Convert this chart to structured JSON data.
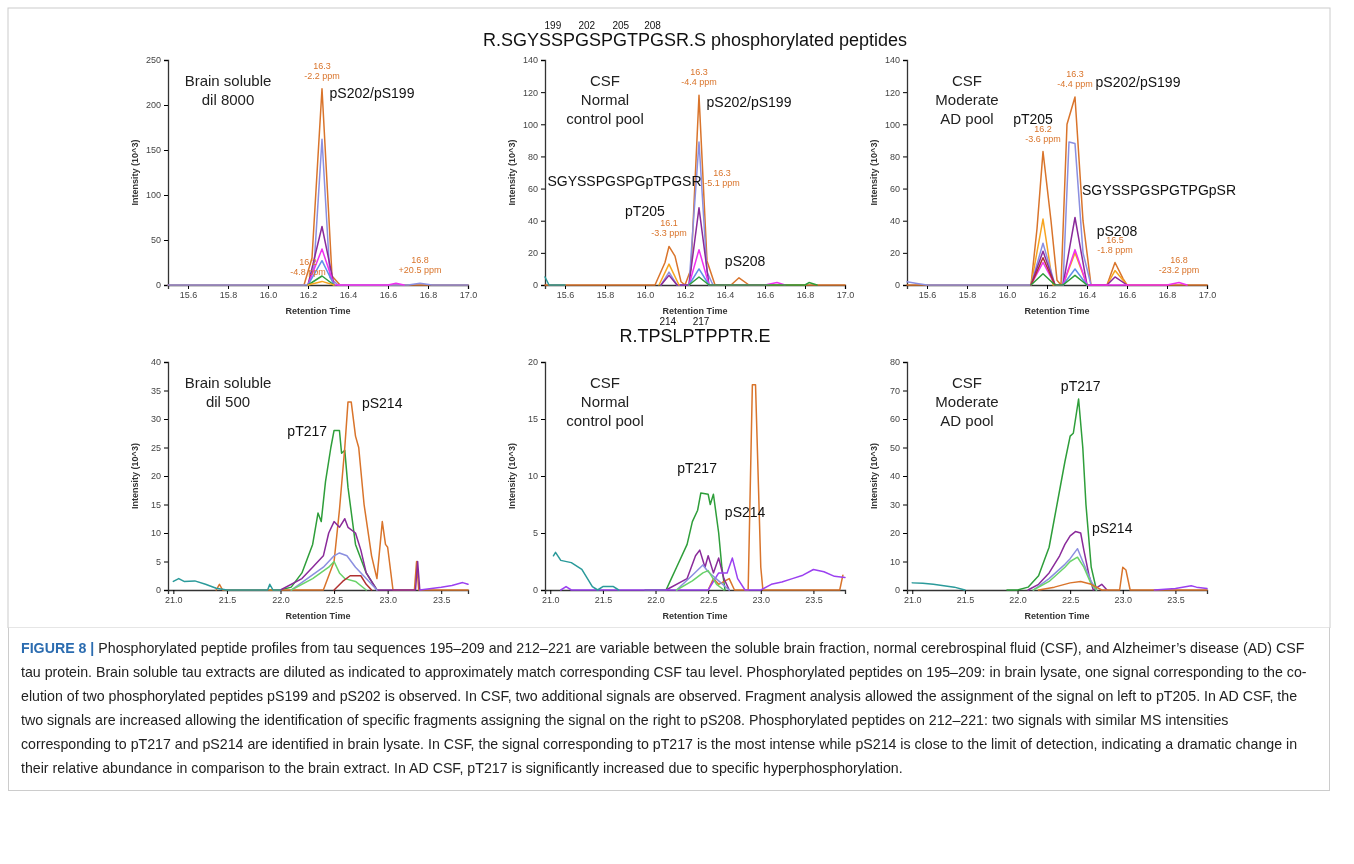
{
  "chart_data": [
    {
      "type": "line",
      "subtitle": "Brain soluble\ndil 8000",
      "xlabel": "Retention Time",
      "ylabel": "Intensity (10^3)",
      "xlim": [
        15.5,
        17.0
      ],
      "ylim": [
        0,
        250
      ],
      "xticks": [
        15.6,
        15.8,
        {
          "value": 16,
          "label": "16.0"
        },
        16.2,
        16.4,
        16.6,
        16.8,
        {
          "value": 17,
          "label": "17.0"
        }
      ],
      "yticks": [
        0,
        50,
        100,
        150,
        200,
        250
      ],
      "line_style": "solid",
      "series": [
        {
          "color": "#d9742b",
          "x": [
            15.5,
            16.18,
            16.22,
            16.27,
            16.32,
            16.36,
            17.0
          ],
          "values": [
            0,
            0,
            30,
            218,
            10,
            0,
            0
          ]
        },
        {
          "color": "#8b8fe0",
          "x": [
            15.5,
            16.2,
            16.23,
            16.27,
            16.31,
            16.35,
            16.7,
            16.76,
            16.82,
            17.0
          ],
          "values": [
            0,
            0,
            20,
            162,
            8,
            0,
            0,
            2,
            0,
            0
          ]
        },
        {
          "color": "#8a2a9a",
          "x": [
            16.2,
            16.27,
            16.33
          ],
          "values": [
            0,
            65,
            0
          ]
        },
        {
          "color": "#f030f0",
          "x": [
            16.2,
            16.27,
            16.33,
            16.6,
            16.64,
            16.68
          ],
          "values": [
            0,
            40,
            0,
            0,
            2,
            0
          ]
        },
        {
          "color": "#5f8fe8",
          "x": [
            16.2,
            16.27,
            16.33
          ],
          "values": [
            0,
            27,
            0
          ]
        },
        {
          "color": "#2e9e3a",
          "x": [
            16.2,
            16.27,
            16.33
          ],
          "values": [
            0,
            10,
            0
          ]
        },
        {
          "color": "#f7a520",
          "x": [
            16.2,
            16.27,
            16.33
          ],
          "values": [
            0,
            4,
            0
          ]
        }
      ],
      "annotations": [
        {
          "text": "16.3\n-2.2 ppm",
          "x": 16.27,
          "y": 218
        },
        {
          "text": "16.2\n-4.8 ppm",
          "x": 16.2,
          "y": 0
        },
        {
          "text": "16.8\n+20.5 ppm",
          "x": 16.76,
          "y": 2
        },
        "pS202/pS199"
      ]
    },
    {
      "type": "line",
      "title": "R.SGYSSPGSPGTPGSR.S phosphorylated peptides",
      "subtitle": "CSF\nNormal\ncontrol pool",
      "xlabel": "Retention Time",
      "ylabel": "Intensity (10^3)",
      "xlim": [
        15.5,
        17.0
      ],
      "ylim": [
        0,
        140
      ],
      "xticks": [
        15.6,
        15.8,
        {
          "value": 16,
          "label": "16.0"
        },
        16.2,
        16.4,
        16.6,
        16.8,
        {
          "value": 17,
          "label": "17.0"
        }
      ],
      "yticks": [
        0,
        20,
        40,
        60,
        80,
        100,
        120,
        140
      ],
      "line_style": "solid",
      "series": [
        {
          "color": "#d9742b",
          "x": [
            15.5,
            16.05,
            16.1,
            16.12,
            16.15,
            16.18,
            16.2,
            16.23,
            16.27,
            16.31,
            16.35,
            16.43,
            16.47,
            16.52,
            17.0
          ],
          "values": [
            0,
            0,
            14,
            24,
            18,
            2,
            0,
            10,
            118,
            15,
            0,
            0,
            4.5,
            0,
            0
          ]
        },
        {
          "color": "#8b8fe0",
          "x": [
            16.08,
            16.12,
            16.16,
            16.22,
            16.27,
            16.31,
            16.34
          ],
          "values": [
            0,
            8,
            0,
            0,
            89,
            8,
            0
          ]
        },
        {
          "color": "#8a2a9a",
          "x": [
            16.08,
            16.12,
            16.16,
            16.22,
            16.27,
            16.32
          ],
          "values": [
            0,
            6,
            0,
            0,
            48,
            0
          ]
        },
        {
          "color": "#f7a520",
          "x": [
            16.07,
            16.12,
            16.17
          ],
          "values": [
            0,
            13,
            0
          ]
        },
        {
          "color": "#f030f0",
          "x": [
            16.22,
            16.27,
            16.32,
            16.6,
            16.66,
            16.7
          ],
          "values": [
            0,
            22,
            0,
            0,
            1.5,
            0
          ]
        },
        {
          "color": "#5f8fe8",
          "x": [
            16.22,
            16.27,
            16.32
          ],
          "values": [
            0,
            10,
            0
          ]
        },
        {
          "color": "#2e9e3a",
          "x": [
            16.22,
            16.27,
            16.32,
            16.8,
            16.82,
            16.86
          ],
          "values": [
            0,
            5,
            0,
            0,
            1.5,
            0
          ]
        },
        {
          "color": "#2a9a9a",
          "x": [
            15.5,
            15.52,
            15.6
          ],
          "values": [
            5,
            0,
            0
          ]
        }
      ],
      "annotations": [
        "199",
        "202",
        "205",
        "208",
        {
          "text": "16.3\n-4.4 ppm",
          "x": 16.27,
          "y": 118
        },
        {
          "text": "16.1\n-3.3 ppm",
          "x": 16.12,
          "y": 24
        },
        "pS202/pS199",
        "16.3\n-5.1 ppm",
        "SGYSSPGSPGpTPGSR",
        "pT205",
        "pS208"
      ]
    },
    {
      "type": "line",
      "subtitle": "CSF\nModerate\nAD pool",
      "xlabel": "Retention Time",
      "ylabel": "Intensity (10^3)",
      "xlim": [
        15.5,
        17.0
      ],
      "ylim": [
        0,
        140
      ],
      "xticks": [
        15.6,
        15.8,
        {
          "value": 16,
          "label": "16.0"
        },
        16.2,
        16.4,
        16.6,
        16.8,
        {
          "value": 17,
          "label": "17.0"
        }
      ],
      "yticks": [
        0,
        20,
        40,
        60,
        80,
        100,
        120,
        140
      ],
      "line_style": "solid",
      "series": [
        {
          "color": "#d9742b",
          "x": [
            15.5,
            16.12,
            16.15,
            16.18,
            16.22,
            16.25,
            16.27,
            16.3,
            16.34,
            16.38,
            16.42,
            16.5,
            16.54,
            16.58,
            16.6,
            17.0
          ],
          "values": [
            0,
            0,
            35,
            83,
            40,
            3,
            0,
            100,
            117,
            40,
            0,
            0,
            14,
            4,
            0,
            0
          ]
        },
        {
          "color": "#f7a520",
          "x": [
            16.12,
            16.18,
            16.23,
            16.28,
            16.34,
            16.4,
            16.5,
            16.54,
            16.6
          ],
          "values": [
            0,
            41,
            0,
            0,
            20,
            0,
            0,
            9,
            0
          ]
        },
        {
          "color": "#8b8fe0",
          "x": [
            15.5,
            15.55,
            15.6,
            16.12,
            16.18,
            16.24,
            16.28,
            16.31,
            16.34,
            16.38,
            16.42
          ],
          "values": [
            2,
            1,
            0,
            0,
            26,
            0,
            0,
            89,
            88,
            20,
            0
          ]
        },
        {
          "color": "#8a2a9a",
          "x": [
            16.12,
            16.18,
            16.24,
            16.28,
            16.34,
            16.4,
            16.5,
            16.54,
            16.6
          ],
          "values": [
            0,
            21,
            0,
            0,
            42,
            0,
            0,
            5,
            0
          ]
        },
        {
          "color": "#f030f0",
          "x": [
            16.12,
            16.18,
            16.24,
            16.28,
            16.34,
            16.4,
            16.8,
            16.86,
            16.9
          ],
          "values": [
            0,
            14,
            0,
            0,
            22,
            0,
            0,
            1.5,
            0
          ]
        },
        {
          "color": "#b03030",
          "x": [
            16.12,
            16.18,
            16.24
          ],
          "values": [
            0,
            17,
            0
          ]
        },
        {
          "color": "#5f8fe8",
          "x": [
            16.28,
            16.34,
            16.4
          ],
          "values": [
            0,
            10,
            0
          ]
        },
        {
          "color": "#2e9e3a",
          "x": [
            16.12,
            16.18,
            16.24,
            16.28,
            16.34,
            16.4
          ],
          "values": [
            0,
            7,
            0,
            0,
            6,
            0
          ]
        }
      ],
      "annotations": [
        {
          "text": "16.2\n-3.6 ppm",
          "x": 16.18,
          "y": 83
        },
        {
          "text": "16.3\n-4.4 ppm",
          "x": 16.34,
          "y": 117
        },
        {
          "text": "16.5\n-1.8 ppm",
          "x": 16.54,
          "y": 14
        },
        {
          "text": "16.8\n-23.2 ppm",
          "x": 16.86,
          "y": 1.5
        },
        "pS202/pS199",
        "pT205",
        "SGYSSPGSPGTPGpSR",
        "pS208"
      ]
    },
    {
      "type": "line",
      "subtitle": "Brain soluble\ndil 500",
      "xlabel": "Retention Time",
      "ylabel": "Intensity (10^3)",
      "xlim": [
        20.95,
        23.75
      ],
      "ylim": [
        0,
        40
      ],
      "xticks": [
        {
          "value": 21,
          "label": "21.0"
        },
        21.5,
        {
          "value": 22,
          "label": "22.0"
        },
        22.5,
        {
          "value": 23,
          "label": "23.0"
        },
        23.5
      ],
      "yticks": [
        0,
        5,
        10,
        15,
        20,
        25,
        30,
        35,
        40
      ],
      "line_style": "solid",
      "series": [
        {
          "color": "#2e9e3a",
          "x": [
            21.9,
            22.0,
            22.1,
            22.2,
            22.3,
            22.35,
            22.38,
            22.42,
            22.47,
            22.5,
            22.55,
            22.57,
            22.6,
            22.63,
            22.7,
            22.8,
            22.9
          ],
          "values": [
            0,
            0,
            0.5,
            3,
            8,
            13.5,
            12,
            19,
            25,
            28,
            28,
            24,
            24.5,
            18,
            8,
            3,
            0
          ]
        },
        {
          "color": "#d9742b",
          "x": [
            21.4,
            21.43,
            21.46,
            22.3,
            22.4,
            22.5,
            22.55,
            22.6,
            22.63,
            22.66,
            22.7,
            22.73,
            22.78,
            22.85,
            22.9,
            22.95,
            22.98,
            23.0,
            23.05,
            23.25,
            23.27,
            23.29,
            23.75
          ],
          "values": [
            0,
            1,
            0,
            0,
            0,
            5,
            14,
            25,
            33,
            33,
            27,
            25,
            15,
            6,
            2,
            12,
            8,
            7.5,
            0,
            0,
            5,
            0,
            0
          ]
        },
        {
          "color": "#8a2a9a",
          "x": [
            22.0,
            22.2,
            22.3,
            22.4,
            22.45,
            22.5,
            22.55,
            22.6,
            22.63,
            22.7,
            22.75,
            22.8,
            22.9,
            23.26,
            23.28,
            23.3
          ],
          "values": [
            0,
            2,
            4,
            6,
            10,
            12,
            11,
            12.5,
            11,
            10,
            7,
            3,
            0,
            0,
            5,
            0
          ]
        },
        {
          "color": "#8b8fe0",
          "x": [
            22.1,
            22.25,
            22.4,
            22.5,
            22.55,
            22.62,
            22.7,
            22.8,
            22.9
          ],
          "values": [
            0,
            2,
            4,
            6,
            6.5,
            6,
            4,
            2,
            0
          ]
        },
        {
          "color": "#6ad36a",
          "x": [
            22.1,
            22.3,
            22.45,
            22.5,
            22.55,
            22.6,
            22.7,
            22.8
          ],
          "values": [
            0,
            2,
            4,
            5,
            3,
            2,
            1.5,
            0
          ]
        },
        {
          "color": "#2a9a9a",
          "x": [
            21.0,
            21.05,
            21.1,
            21.2,
            21.3,
            21.4,
            21.5,
            21.88,
            21.9,
            21.93,
            22.0
          ],
          "values": [
            1.5,
            2,
            1.5,
            1.6,
            1,
            0.3,
            0,
            0,
            1,
            0,
            0
          ]
        },
        {
          "color": "#9b40f0",
          "x": [
            23.3,
            23.5,
            23.6,
            23.7,
            23.75
          ],
          "values": [
            0,
            0.5,
            0.8,
            1.3,
            1
          ]
        },
        {
          "color": "#b03030",
          "x": [
            22.5,
            22.58,
            22.65,
            22.75,
            22.8,
            22.85
          ],
          "values": [
            0,
            1.5,
            2.5,
            2.5,
            1,
            0
          ]
        }
      ],
      "annotations": [
        "pS214",
        "pT217"
      ]
    },
    {
      "type": "line",
      "title": "R.TPSLPTPPTR.E",
      "subtitle": "CSF\nNormal\ncontrol pool",
      "xlabel": "Retention Time",
      "ylabel": "Intensity (10^3)",
      "xlim": [
        20.95,
        23.8
      ],
      "ylim": [
        0,
        20
      ],
      "xticks": [
        {
          "value": 21,
          "label": "21.0"
        },
        21.5,
        {
          "value": 22,
          "label": "22.0"
        },
        22.5,
        {
          "value": 23,
          "label": "23.0"
        },
        23.5
      ],
      "yticks": [
        0,
        5,
        10,
        15,
        20
      ],
      "line_style": "solid",
      "series": [
        {
          "color": "#2e9e3a",
          "x": [
            21.9,
            22.1,
            22.15,
            22.2,
            22.3,
            22.35,
            22.4,
            22.43,
            22.5,
            22.52,
            22.55,
            22.6,
            22.63,
            22.66
          ],
          "values": [
            0,
            0,
            1,
            2,
            4,
            6,
            7,
            8.5,
            8.4,
            7.5,
            8.4,
            5,
            2,
            0
          ]
        },
        {
          "color": "#d9742b",
          "x": [
            22.5,
            22.55,
            22.6,
            22.7,
            22.75,
            22.88,
            22.92,
            22.95,
            23.0,
            23.02,
            23.75,
            23.78
          ],
          "values": [
            0,
            1,
            0.5,
            1,
            0,
            0,
            18,
            18,
            2,
            0,
            0,
            1.3
          ]
        },
        {
          "color": "#8a2a9a",
          "x": [
            22.1,
            22.3,
            22.38,
            22.42,
            22.47,
            22.5,
            22.55,
            22.6,
            22.65,
            22.7
          ],
          "values": [
            0,
            1,
            3,
            3.5,
            2,
            3,
            1.5,
            2.8,
            1,
            0
          ]
        },
        {
          "color": "#9b40f0",
          "x": [
            21.1,
            21.15,
            21.2,
            22.5,
            22.6,
            22.68,
            22.73,
            22.78,
            22.85,
            23.0,
            23.1,
            23.2,
            23.3,
            23.4,
            23.5,
            23.6,
            23.7,
            23.8
          ],
          "values": [
            0,
            0.3,
            0,
            0,
            1.5,
            1.5,
            2.8,
            1,
            0,
            0,
            0.5,
            0.7,
            1,
            1.3,
            1.8,
            1.6,
            1.2,
            1.1
          ]
        },
        {
          "color": "#8b8fe0",
          "x": [
            22.2,
            22.35,
            22.45,
            22.5,
            22.6,
            22.7
          ],
          "values": [
            0,
            1.3,
            2.2,
            1.6,
            0.8,
            0
          ]
        },
        {
          "color": "#2a9a9a",
          "x": [
            21.03,
            21.05,
            21.1,
            21.2,
            21.3,
            21.4,
            21.45,
            21.5,
            21.6,
            21.65
          ],
          "values": [
            3,
            3.3,
            2.6,
            2.4,
            1.8,
            0.3,
            0,
            0.3,
            0.3,
            0
          ]
        },
        {
          "color": "#6ad36a",
          "x": [
            22.2,
            22.35,
            22.45,
            22.5,
            22.58,
            22.65
          ],
          "values": [
            0,
            0.8,
            1.5,
            1.7,
            0.5,
            0
          ]
        }
      ],
      "annotations": [
        "214",
        "217",
        "pT217",
        "pS214"
      ]
    },
    {
      "type": "line",
      "subtitle": "CSF\nModerate\nAD pool",
      "xlabel": "Retention Time",
      "ylabel": "Intensity (10^3)",
      "xlim": [
        20.95,
        23.8
      ],
      "ylim": [
        0,
        80
      ],
      "xticks": [
        {
          "value": 21,
          "label": "21.0"
        },
        21.5,
        {
          "value": 22,
          "label": "22.0"
        },
        22.5,
        {
          "value": 23,
          "label": "23.0"
        },
        23.5
      ],
      "yticks": [
        0,
        10,
        20,
        30,
        40,
        50,
        60,
        70,
        80
      ],
      "line_style": "solid",
      "series": [
        {
          "color": "#2e9e3a",
          "x": [
            21.9,
            22.0,
            22.1,
            22.2,
            22.3,
            22.35,
            22.4,
            22.45,
            22.5,
            22.53,
            22.58,
            22.62,
            22.65,
            22.7,
            22.75
          ],
          "values": [
            0,
            0,
            1,
            5,
            15,
            25,
            35,
            45,
            54,
            55,
            67,
            50,
            30,
            8,
            0
          ]
        },
        {
          "color": "#8a2a9a",
          "x": [
            22.1,
            22.2,
            22.3,
            22.4,
            22.45,
            22.5,
            22.55,
            22.6,
            22.63,
            22.68,
            22.72,
            22.8,
            22.85
          ],
          "values": [
            0,
            2,
            6,
            12,
            16,
            19,
            20.5,
            20,
            14,
            5,
            0,
            2,
            0
          ]
        },
        {
          "color": "#8b8fe0",
          "x": [
            22.15,
            22.3,
            22.45,
            22.5,
            22.57,
            22.62,
            22.7,
            22.75
          ],
          "values": [
            0,
            4,
            9,
            11,
            14.5,
            10,
            3,
            0
          ]
        },
        {
          "color": "#6ad36a",
          "x": [
            22.15,
            22.3,
            22.45,
            22.5,
            22.57,
            22.63,
            22.7,
            22.75
          ],
          "values": [
            0,
            3,
            8,
            10,
            11.5,
            8,
            2,
            0
          ]
        },
        {
          "color": "#d9742b",
          "x": [
            22.2,
            22.35,
            22.5,
            22.6,
            22.7,
            22.8,
            22.97,
            23.0,
            23.03,
            23.07,
            23.8
          ],
          "values": [
            0,
            1,
            2.5,
            3,
            2,
            0,
            0,
            8,
            7,
            0,
            0
          ]
        },
        {
          "color": "#2a9a9a",
          "x": [
            21.0,
            21.1,
            21.2,
            21.3,
            21.4,
            21.5
          ],
          "values": [
            2.5,
            2.4,
            2,
            1.5,
            1,
            0
          ]
        },
        {
          "color": "#9b40f0",
          "x": [
            23.3,
            23.5,
            23.65,
            23.7,
            23.8
          ],
          "values": [
            0,
            0.5,
            1.5,
            1,
            0.5
          ]
        }
      ],
      "annotations": [
        "pT217",
        "pS214"
      ]
    },
    {
      "type": "other",
      "title": "FIGURE 8 |",
      "annotations": [
        "Phosphorylated peptide profiles from tau sequences 195–209 and 212–221 are variable between the soluble brain fraction, normal cerebrospinal fluid (CSF), and Alzheimer’s disease (AD) CSF tau protein. Brain soluble tau extracts are diluted as indicated to approximately match corresponding CSF tau level. Phosphorylated peptides on 195–209: in brain lysate, one signal corresponding to the co-elution of two phosphorylated peptides pS199 and pS202 is observed. In CSF, two additional signals are observed. Fragment analysis allowed the assignment of the signal on left to pT205. In AD CSF, the two signals are increased allowing the identification of specific fragments assigning the signal on the right to pS208. Phosphorylated peptides on 212–221: two signals with similar MS intensities corresponding to pT217 and pS214 are identified in brain lysate. In CSF, the signal corresponding to pT217 is the most intense while pS214 is close to the limit of detection, indicating a dramatic change in their relative abundance in comparison to the brain extract. In AD CSF, pT217 is significantly increased due to specific hyperphosphorylation."
      ]
    }
  ]
}
